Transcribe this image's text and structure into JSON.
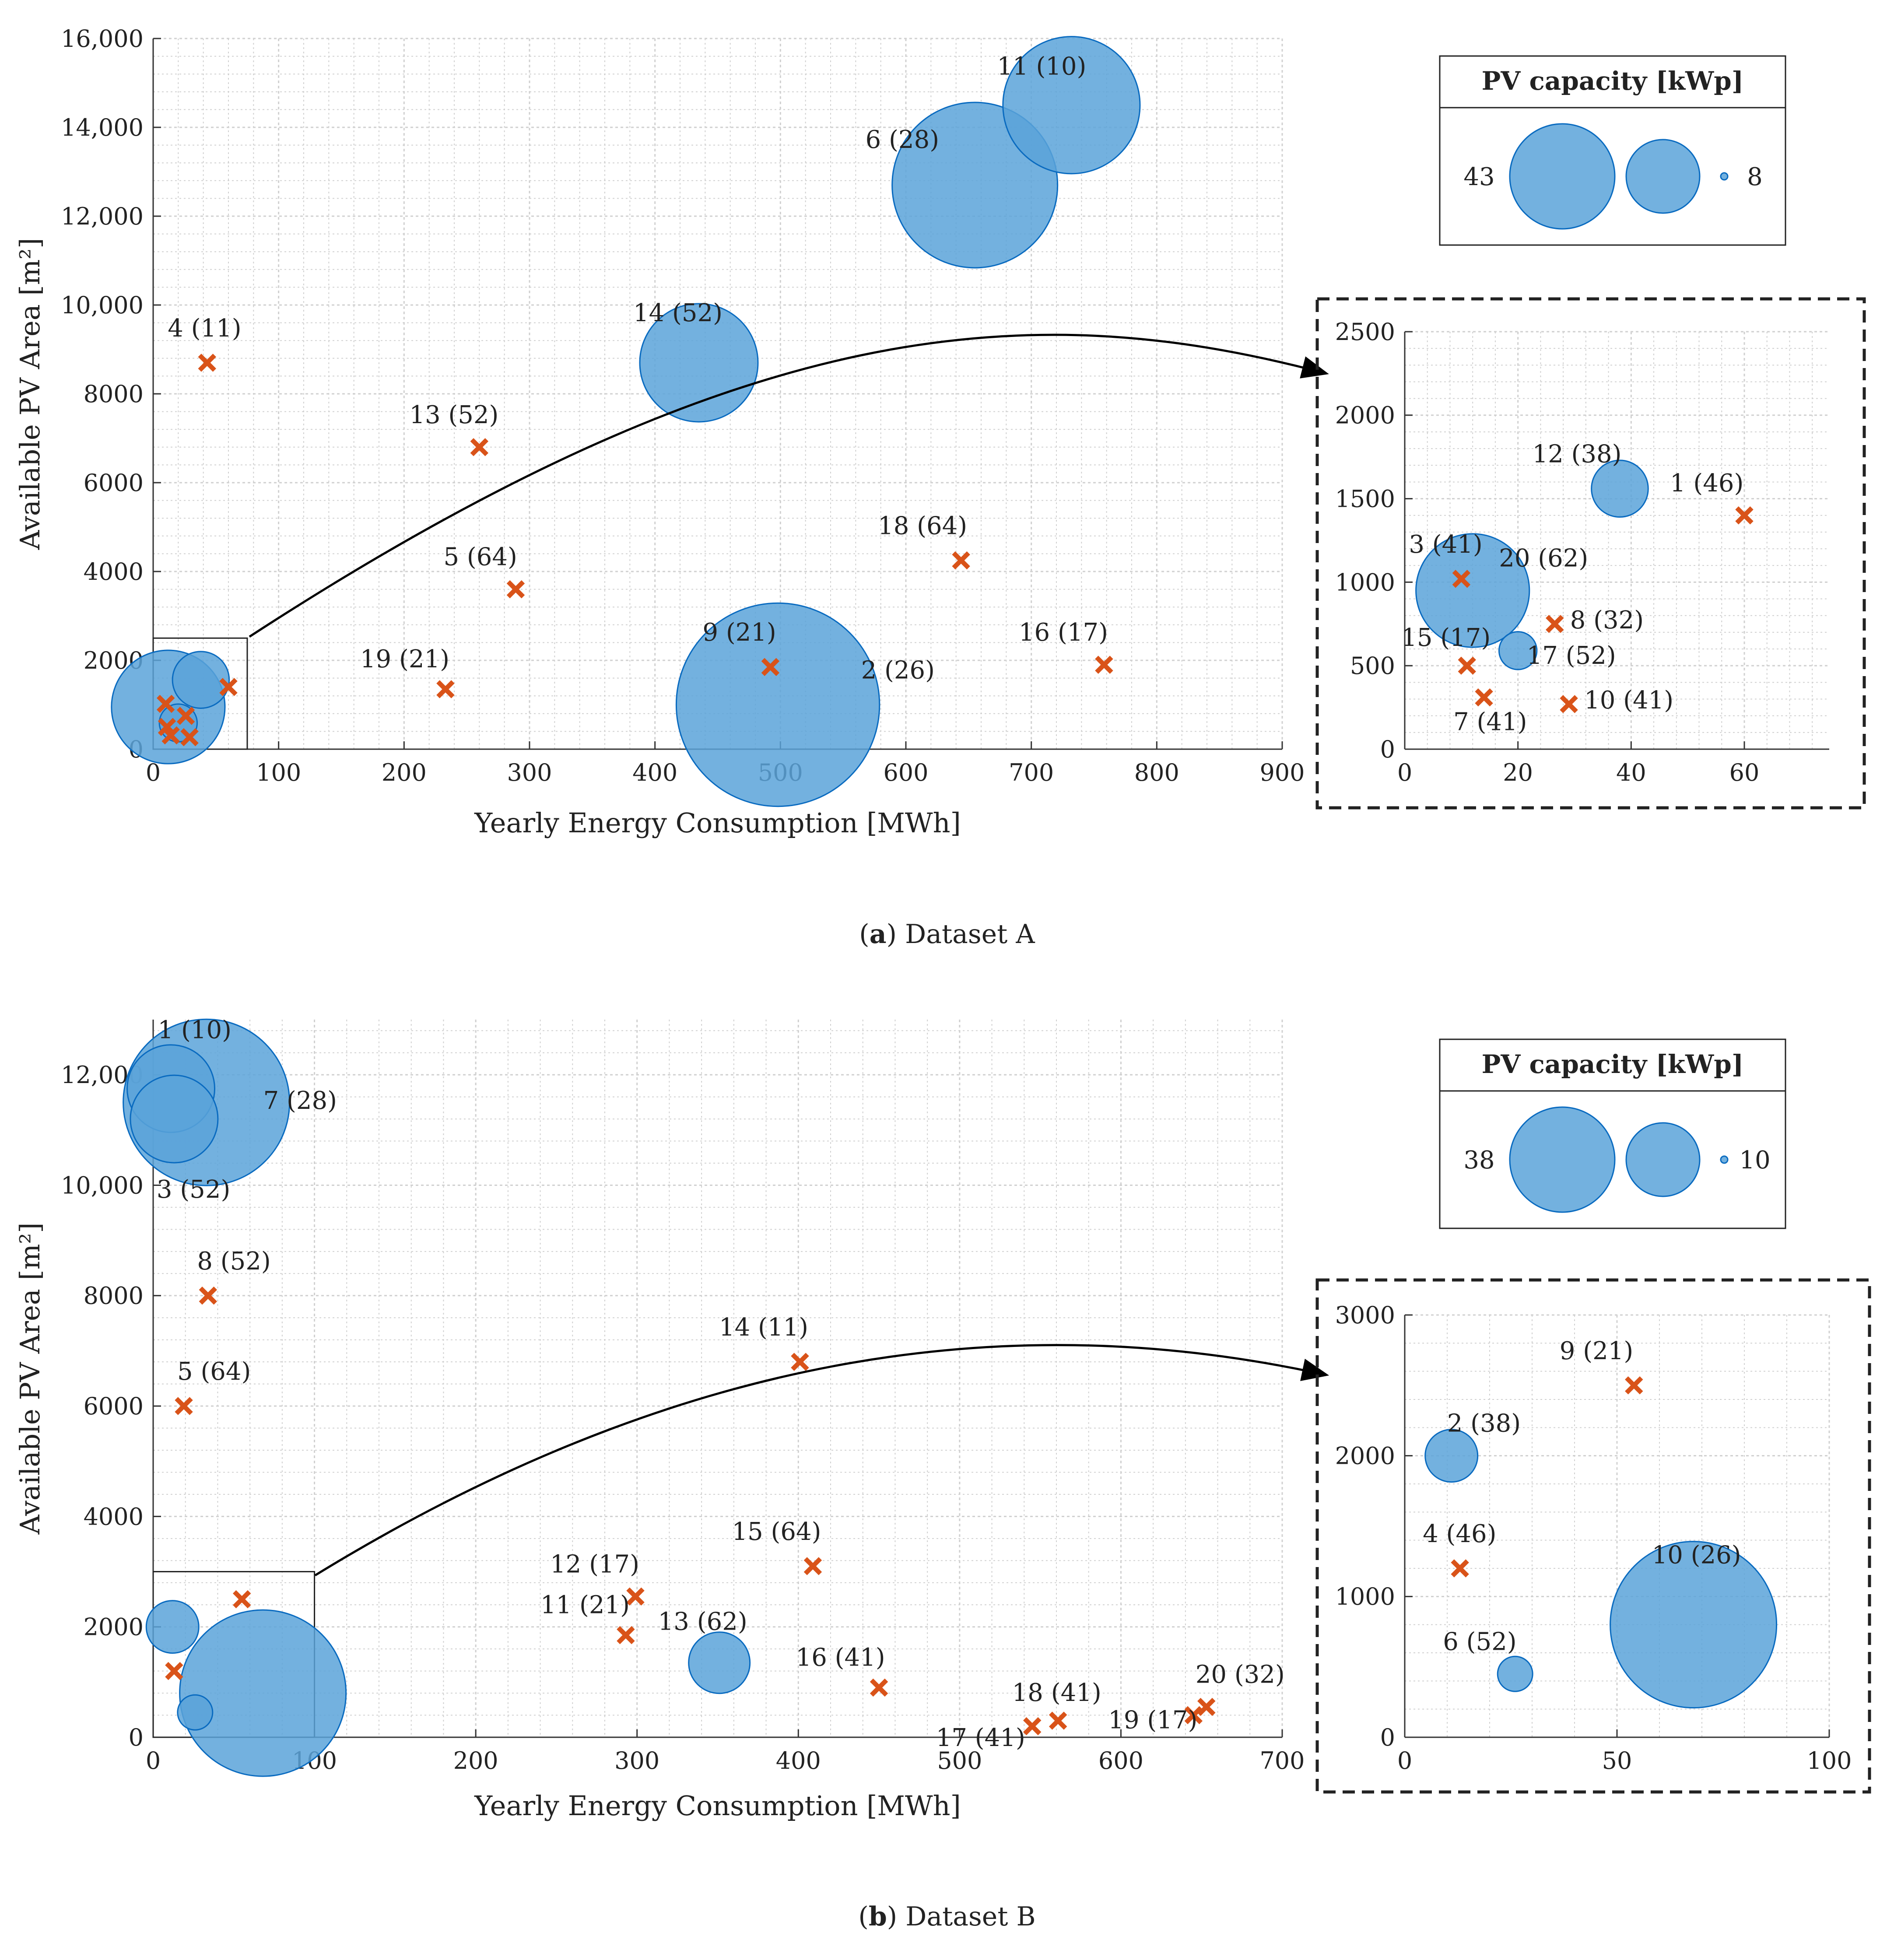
{
  "colors": {
    "bubble_fill": "#5ba3d9",
    "bubble_stroke": "#0a6bc0",
    "cross": "#d95319",
    "grid": "#d0d0d0",
    "axis": "#333333",
    "text": "#222222"
  },
  "panels": [
    {
      "caption_letter": "a",
      "caption_text": " Dataset A",
      "legend": {
        "title": "PV capacity [kWp]",
        "max_label": "43",
        "min_label": "8"
      },
      "chart_data": {
        "type": "scatter",
        "xlabel": "Yearly Energy Consumption [MWh]",
        "ylabel": "Available PV Area [m²]",
        "xlim": [
          0,
          900
        ],
        "ylim": [
          0,
          16000
        ],
        "xticks": [
          0,
          100,
          200,
          300,
          400,
          500,
          600,
          700,
          800,
          900
        ],
        "xtick_labels": [
          "0",
          "100",
          "200",
          "300",
          "400",
          "500",
          "600",
          "700",
          "800",
          "900"
        ],
        "yticks": [
          0,
          2000,
          4000,
          6000,
          8000,
          10000,
          12000,
          14000,
          16000
        ],
        "ytick_labels": [
          "0",
          "2000",
          "4000",
          "6000",
          "8000",
          "10,000",
          "12,000",
          "14,000",
          "16,000"
        ],
        "zoom_box": {
          "x": [
            0,
            75
          ],
          "y": [
            0,
            2500
          ]
        },
        "points": [
          {
            "id": 11,
            "label": "11 (10)",
            "x": 732,
            "y": 14500,
            "kind": "pv",
            "size": 29
          },
          {
            "id": 6,
            "label": "6 (28)",
            "x": 655,
            "y": 12700,
            "kind": "pv",
            "size": 35
          },
          {
            "id": 14,
            "label": "14 (52)",
            "x": 435,
            "y": 8700,
            "kind": "pv",
            "size": 25
          },
          {
            "id": 2,
            "label": "2 (26)",
            "x": 498,
            "y": 1000,
            "kind": "pv",
            "size": 43
          },
          {
            "id": 4,
            "label": "4 (11)",
            "x": 43,
            "y": 8700,
            "kind": "no_pv"
          },
          {
            "id": 13,
            "label": "13 (52)",
            "x": 260,
            "y": 6800,
            "kind": "no_pv"
          },
          {
            "id": 5,
            "label": "5 (64)",
            "x": 289,
            "y": 3600,
            "kind": "no_pv"
          },
          {
            "id": 18,
            "label": "18 (64)",
            "x": 644,
            "y": 4250,
            "kind": "no_pv"
          },
          {
            "id": 19,
            "label": "19 (21)",
            "x": 233,
            "y": 1350,
            "kind": "no_pv"
          },
          {
            "id": 9,
            "label": "9 (21)",
            "x": 492,
            "y": 1850,
            "kind": "no_pv"
          },
          {
            "id": 16,
            "label": "16 (17)",
            "x": 758,
            "y": 1900,
            "kind": "no_pv"
          },
          {
            "id": 12,
            "label": "",
            "x": 38,
            "y": 1560,
            "kind": "pv",
            "size": 12
          },
          {
            "id": 20,
            "label": "",
            "x": 12,
            "y": 950,
            "kind": "pv",
            "size": 24
          },
          {
            "id": 17,
            "label": "",
            "x": 20,
            "y": 590,
            "kind": "pv",
            "size": 8
          },
          {
            "id": 1,
            "label": "",
            "x": 60,
            "y": 1400,
            "kind": "no_pv"
          },
          {
            "id": 3,
            "label": "",
            "x": 10,
            "y": 1020,
            "kind": "no_pv"
          },
          {
            "id": 8,
            "label": "",
            "x": 26,
            "y": 750,
            "kind": "no_pv"
          },
          {
            "id": 15,
            "label": "",
            "x": 11,
            "y": 500,
            "kind": "no_pv"
          },
          {
            "id": 7,
            "label": "",
            "x": 14,
            "y": 310,
            "kind": "no_pv"
          },
          {
            "id": 10,
            "label": "",
            "x": 29,
            "y": 270,
            "kind": "no_pv"
          }
        ]
      },
      "inset_data": {
        "type": "scatter",
        "xlim": [
          0,
          75
        ],
        "ylim": [
          0,
          2500
        ],
        "xticks": [
          0,
          20,
          40,
          60
        ],
        "xtick_labels": [
          "0",
          "20",
          "40",
          "60"
        ],
        "yticks": [
          0,
          500,
          1000,
          1500,
          2000,
          2500
        ],
        "ytick_labels": [
          "0",
          "500",
          "1000",
          "1500",
          "2000",
          "2500"
        ],
        "points": [
          {
            "id": 12,
            "label": "12 (38)",
            "x": 38,
            "y": 1560,
            "kind": "pv",
            "size": 12
          },
          {
            "id": 20,
            "label": "20 (62)",
            "x": 12,
            "y": 950,
            "kind": "pv",
            "size": 24
          },
          {
            "id": 17,
            "label": "17 (52)",
            "x": 20,
            "y": 590,
            "kind": "pv",
            "size": 8
          },
          {
            "id": 1,
            "label": "1 (46)",
            "x": 60,
            "y": 1400,
            "kind": "no_pv"
          },
          {
            "id": 3,
            "label": "3 (41)",
            "x": 10,
            "y": 1020,
            "kind": "no_pv"
          },
          {
            "id": 8,
            "label": "8 (32)",
            "x": 26.5,
            "y": 750,
            "kind": "no_pv"
          },
          {
            "id": 15,
            "label": "15 (17)",
            "x": 11,
            "y": 500,
            "kind": "no_pv"
          },
          {
            "id": 7,
            "label": "7 (41)",
            "x": 14,
            "y": 310,
            "kind": "no_pv"
          },
          {
            "id": 10,
            "label": "10 (41)",
            "x": 29,
            "y": 270,
            "kind": "no_pv"
          }
        ]
      }
    },
    {
      "caption_letter": "b",
      "caption_text": " Dataset B",
      "legend": {
        "title": "PV capacity [kWp]",
        "max_label": "38",
        "min_label": "10"
      },
      "chart_data": {
        "type": "scatter",
        "xlabel": "Yearly Energy Consumption [MWh]",
        "ylabel": "Available PV Area [m²]",
        "xlim": [
          0,
          700
        ],
        "ylim": [
          0,
          13000
        ],
        "xticks": [
          0,
          100,
          200,
          300,
          400,
          500,
          600,
          700
        ],
        "xtick_labels": [
          "0",
          "100",
          "200",
          "300",
          "400",
          "500",
          "600",
          "700"
        ],
        "yticks": [
          0,
          2000,
          4000,
          6000,
          8000,
          10000,
          12000
        ],
        "ytick_labels": [
          "0",
          "2000",
          "4000",
          "6000",
          "8000",
          "10,000",
          "12,000"
        ],
        "zoom_box": {
          "x": [
            0,
            100
          ],
          "y": [
            0,
            3000
          ]
        },
        "points": [
          {
            "id": 1,
            "label": "1 (10)",
            "x": 11,
            "y": 11750,
            "kind": "pv",
            "size": 20
          },
          {
            "id": 7,
            "label": "7 (28)",
            "x": 33,
            "y": 11500,
            "kind": "pv",
            "size": 38
          },
          {
            "id": 3,
            "label": "3 (52)",
            "x": 13,
            "y": 11200,
            "kind": "pv",
            "size": 20
          },
          {
            "id": 13,
            "label": "13 (62)",
            "x": 351,
            "y": 1350,
            "kind": "pv",
            "size": 14
          },
          {
            "id": 8,
            "label": "8 (52)",
            "x": 34,
            "y": 8000,
            "kind": "no_pv"
          },
          {
            "id": 5,
            "label": "5 (64)",
            "x": 19,
            "y": 6000,
            "kind": "no_pv"
          },
          {
            "id": 14,
            "label": "14 (11)",
            "x": 401,
            "y": 6800,
            "kind": "no_pv"
          },
          {
            "id": 15,
            "label": "15 (64)",
            "x": 409,
            "y": 3100,
            "kind": "no_pv"
          },
          {
            "id": 12,
            "label": "12 (17)",
            "x": 299,
            "y": 2550,
            "kind": "no_pv"
          },
          {
            "id": 11,
            "label": "11 (21)",
            "x": 293,
            "y": 1850,
            "kind": "no_pv"
          },
          {
            "id": 16,
            "label": "16 (41)",
            "x": 450,
            "y": 900,
            "kind": "no_pv"
          },
          {
            "id": 17,
            "label": "17 (41)",
            "x": 545,
            "y": 200,
            "kind": "no_pv"
          },
          {
            "id": 18,
            "label": "18 (41)",
            "x": 561,
            "y": 300,
            "kind": "no_pv"
          },
          {
            "id": 19,
            "label": "19 (17)",
            "x": 645,
            "y": 400,
            "kind": "no_pv"
          },
          {
            "id": 20,
            "label": "20 (32)",
            "x": 653,
            "y": 550,
            "kind": "no_pv"
          },
          {
            "id": 2,
            "label": "",
            "x": 12,
            "y": 2000,
            "kind": "pv",
            "size": 12
          },
          {
            "id": 10,
            "label": "",
            "x": 68,
            "y": 800,
            "kind": "pv",
            "size": 38
          },
          {
            "id": 6,
            "label": "",
            "x": 26,
            "y": 450,
            "kind": "pv",
            "size": 8
          },
          {
            "id": 9,
            "label": "",
            "x": 55,
            "y": 2500,
            "kind": "no_pv"
          },
          {
            "id": 4,
            "label": "",
            "x": 13,
            "y": 1200,
            "kind": "no_pv"
          }
        ]
      },
      "inset_data": {
        "type": "scatter",
        "xlim": [
          0,
          100
        ],
        "ylim": [
          0,
          3000
        ],
        "xticks": [
          0,
          50,
          100
        ],
        "xtick_labels": [
          "0",
          "50",
          "100"
        ],
        "yticks": [
          0,
          1000,
          2000,
          3000
        ],
        "ytick_labels": [
          "0",
          "1000",
          "2000",
          "3000"
        ],
        "points": [
          {
            "id": 9,
            "label": "9 (21)",
            "x": 54,
            "y": 2500,
            "kind": "no_pv"
          },
          {
            "id": 2,
            "label": "2 (38)",
            "x": 11,
            "y": 2000,
            "kind": "pv",
            "size": 12
          },
          {
            "id": 4,
            "label": "4 (46)",
            "x": 13,
            "y": 1200,
            "kind": "no_pv"
          },
          {
            "id": 10,
            "label": "10 (26)",
            "x": 68,
            "y": 800,
            "kind": "pv",
            "size": 38
          },
          {
            "id": 6,
            "label": "6 (52)",
            "x": 26,
            "y": 450,
            "kind": "pv",
            "size": 8
          }
        ]
      }
    }
  ]
}
